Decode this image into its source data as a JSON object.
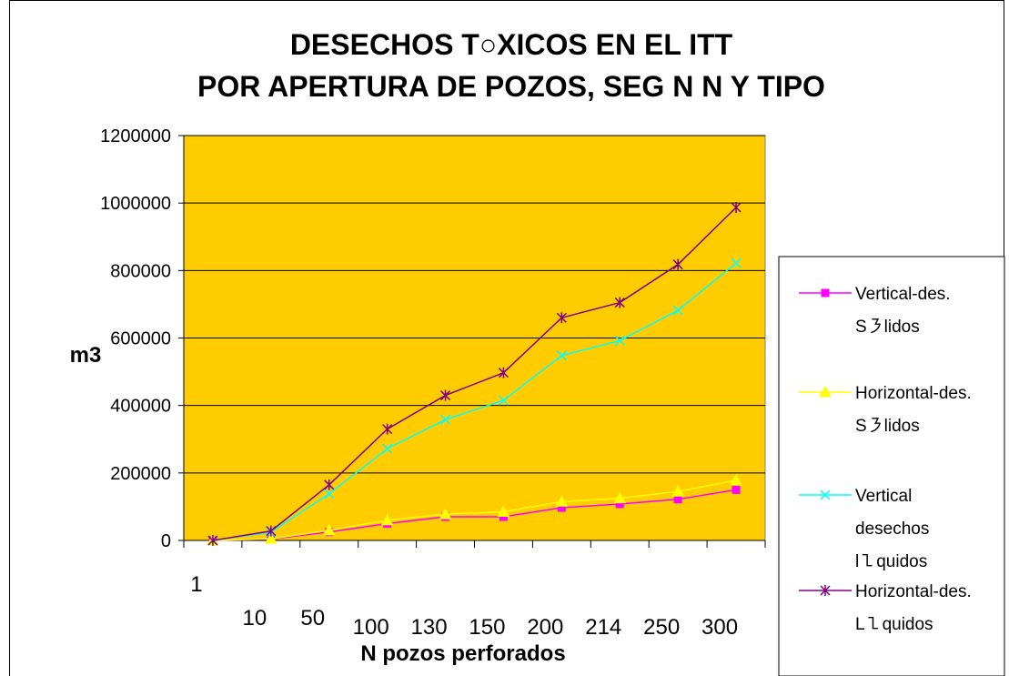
{
  "chart_data": {
    "type": "line",
    "title_line1": "DESECHOS T○XICOS EN EL ITT",
    "title_line2": "POR APERTURA DE POZOS, SEG   N N   Y TIPO",
    "xlabel": "N   pozos perforados",
    "ylabel": "m3",
    "categories": [
      "1",
      "10",
      "50",
      "100",
      "130",
      "150",
      "200",
      "214",
      "250",
      "300"
    ],
    "ylim": [
      0,
      1200000
    ],
    "yticks": [
      "0",
      "200000",
      "400000",
      "600000",
      "800000",
      "1000000",
      "1200000"
    ],
    "grid": true,
    "legend_position": "right",
    "plot_background": "#FFCC00",
    "series": [
      {
        "name_lines": [
          "Vertical-des.",
          "S㇋lidos"
        ],
        "color": "#FF00FF",
        "marker": "square",
        "values": [
          0,
          4000,
          25000,
          50000,
          70000,
          70000,
          97000,
          108000,
          122000,
          150000
        ]
      },
      {
        "name_lines": [
          "Horizontal-des.",
          "S㇋lidos"
        ],
        "color": "#FFFF00",
        "marker": "triangle",
        "values": [
          0,
          5000,
          30000,
          60000,
          78000,
          85000,
          115000,
          125000,
          145000,
          178000
        ]
      },
      {
        "name_lines": [
          "Vertical",
          "desechos",
          "l㇅quidos"
        ],
        "color": "#00FFFF",
        "marker": "x",
        "values": [
          0,
          25000,
          138000,
          272000,
          358000,
          415000,
          548000,
          592000,
          682000,
          822000
        ]
      },
      {
        "name_lines": [
          "Horizontal-des.",
          "L㇅quidos"
        ],
        "color": "#800080",
        "marker": "star",
        "values": [
          0,
          28000,
          165000,
          330000,
          430000,
          497000,
          660000,
          705000,
          818000,
          987000
        ]
      }
    ]
  }
}
